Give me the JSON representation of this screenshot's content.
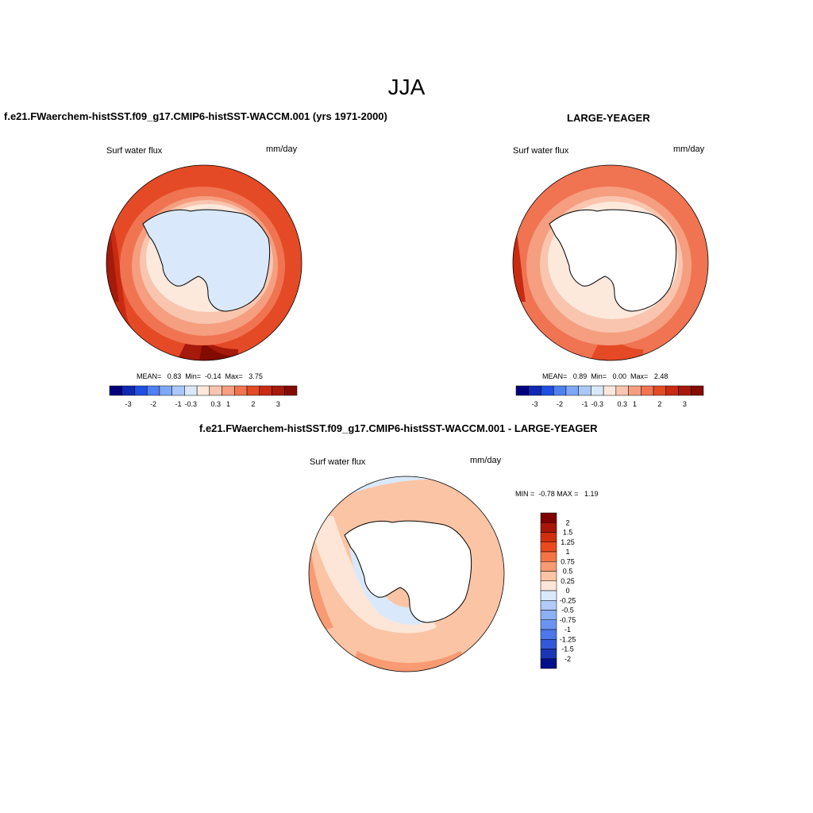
{
  "page": {
    "title": "JJA"
  },
  "panels": {
    "left": {
      "title": "f.e21.FWaerchem-histSST.f09_g17.CMIP6-histSST-WACCM.001 (yrs 1971-2000)",
      "variable": "Surf water flux",
      "units": "mm/day",
      "stats": "MEAN=   0.83  Min=  -0.14  Max=   3.75"
    },
    "right": {
      "title": "LARGE-YEAGER",
      "variable": "Surf water flux",
      "units": "mm/day",
      "stats": "MEAN=   0.89  Min=   0.00  Max=   2.48"
    },
    "diff": {
      "title": "f.e21.FWaerchem-histSST.f09_g17.CMIP6-histSST-WACCM.001 - LARGE-YEAGER",
      "variable": "Surf water flux",
      "units": "mm/day",
      "stats": "MIN =  -0.78 MAX =   1.19"
    }
  },
  "colorbar_main": {
    "colors": [
      "#00007f",
      "#0f29b3",
      "#1f4fe0",
      "#4f7ff0",
      "#7ea8f5",
      "#a9c8f8",
      "#d9e9fb",
      "#fde8dc",
      "#f9c5ae",
      "#f59e80",
      "#f07452",
      "#e44a25",
      "#c92a12",
      "#a51a0a",
      "#840b00"
    ],
    "tick_labels": [
      "-3",
      "-2",
      "-1",
      "-0.3",
      "0.3",
      "1",
      "2",
      "3"
    ]
  },
  "colorbar_diff": {
    "colors": [
      "#7f0000",
      "#a81607",
      "#cf2f0d",
      "#ea4a1e",
      "#f47446",
      "#f89a72",
      "#fbc4a4",
      "#fde6d8",
      "#d9e9fb",
      "#b0cbf7",
      "#8cb0f4",
      "#6b94f1",
      "#4d78ea",
      "#3459d8",
      "#1b36b5",
      "#000f8a"
    ],
    "tick_labels": [
      "2",
      "1.5",
      "1.25",
      "1",
      "0.75",
      "0.5",
      "0.25",
      "0",
      "-0.25",
      "-0.5",
      "-0.75",
      "-1",
      "-1.25",
      "-1.5",
      "-2"
    ]
  }
}
